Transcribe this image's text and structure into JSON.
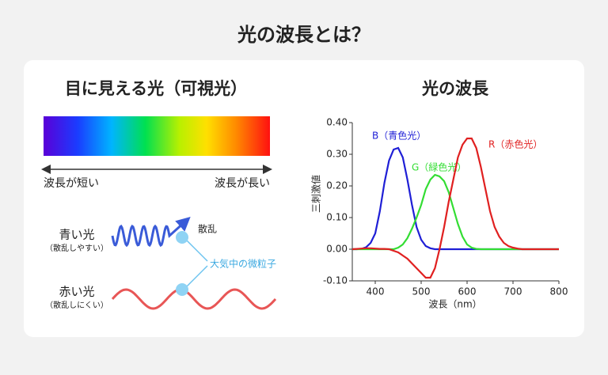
{
  "title": "光の波長とは？",
  "left": {
    "title": "目に見える光（可視光）",
    "short_label": "波長が短い",
    "long_label": "波長が長い",
    "blue": {
      "label": "青い光",
      "note": "（散乱しやすい）"
    },
    "red": {
      "label": "赤い光",
      "note": "（散乱しにくい）"
    },
    "scatter_label": "散乱",
    "particle_label": "大気中の微粒子"
  },
  "chart_data": {
    "type": "line",
    "title": "光の波長",
    "xlabel": "波長（nm）",
    "ylabel": "三刺激値",
    "x": [
      350,
      360,
      370,
      380,
      390,
      400,
      410,
      420,
      430,
      440,
      450,
      460,
      470,
      480,
      490,
      500,
      510,
      520,
      530,
      540,
      550,
      560,
      570,
      580,
      590,
      600,
      610,
      620,
      630,
      640,
      650,
      660,
      670,
      680,
      690,
      700,
      710,
      720,
      730,
      740,
      750,
      760,
      770,
      780,
      790,
      800
    ],
    "series": [
      {
        "name": "B（青色光）",
        "color": "#1f1fd6",
        "values": [
          0,
          0,
          0.001,
          0.006,
          0.02,
          0.05,
          0.12,
          0.21,
          0.28,
          0.315,
          0.32,
          0.29,
          0.22,
          0.14,
          0.07,
          0.03,
          0.01,
          0.003,
          0,
          0,
          0,
          0,
          0,
          0,
          0,
          0,
          0,
          0,
          0,
          0,
          0,
          0,
          0,
          0,
          0,
          0,
          0,
          0,
          0,
          0,
          0,
          0,
          0,
          0,
          0,
          0
        ]
      },
      {
        "name": "G（緑色光）",
        "color": "#33dd33",
        "values": [
          0,
          0,
          0,
          0,
          0,
          0,
          0,
          0,
          0,
          0,
          0.005,
          0.015,
          0.035,
          0.065,
          0.1,
          0.14,
          0.19,
          0.22,
          0.235,
          0.23,
          0.215,
          0.18,
          0.13,
          0.08,
          0.04,
          0.015,
          0.005,
          0.001,
          0,
          0,
          0,
          0,
          0,
          0,
          0,
          0,
          0,
          0,
          0,
          0,
          0,
          0,
          0,
          0,
          0,
          0
        ]
      },
      {
        "name": "R（赤色光）",
        "color": "#e02020",
        "values": [
          0,
          0.001,
          0.002,
          0.003,
          0.003,
          0.002,
          0.001,
          0.001,
          0,
          -0.005,
          -0.01,
          -0.02,
          -0.03,
          -0.045,
          -0.06,
          -0.075,
          -0.09,
          -0.09,
          -0.06,
          0,
          0.07,
          0.15,
          0.22,
          0.29,
          0.33,
          0.35,
          0.35,
          0.32,
          0.26,
          0.19,
          0.12,
          0.07,
          0.04,
          0.02,
          0.01,
          0.005,
          0.002,
          0,
          0,
          0,
          0,
          0,
          0,
          0,
          0,
          0
        ]
      }
    ],
    "xlim": [
      350,
      800
    ],
    "ylim": [
      -0.1,
      0.4
    ],
    "xticks": [
      400,
      500,
      600,
      700,
      800
    ],
    "yticks": [
      {
        "value": -0.1,
        "label": "-0.10"
      },
      {
        "value": 0,
        "label": "0.00"
      },
      {
        "value": 0.1,
        "label": "0.10"
      },
      {
        "value": 0.2,
        "label": "0.20"
      },
      {
        "value": 0.3,
        "label": "0.30"
      },
      {
        "value": 0.4,
        "label": "0.40"
      }
    ]
  }
}
